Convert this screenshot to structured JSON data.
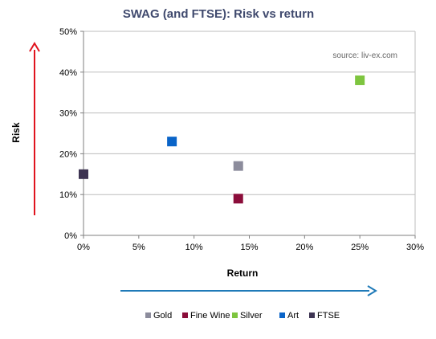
{
  "chart_data": {
    "type": "scatter",
    "title": "SWAG (and FTSE): Risk vs return",
    "xlabel": "Return",
    "ylabel": "Risk",
    "xlim": [
      0,
      30
    ],
    "ylim": [
      0,
      50
    ],
    "x_ticks": [
      0,
      5,
      10,
      15,
      20,
      25,
      30
    ],
    "y_ticks": [
      0,
      10,
      20,
      30,
      40,
      50
    ],
    "x_tick_labels": [
      "0%",
      "5%",
      "10%",
      "15%",
      "20%",
      "25%",
      "30%"
    ],
    "y_tick_labels": [
      "0%",
      "10%",
      "20%",
      "30%",
      "40%",
      "50%"
    ],
    "grid": "horizontal",
    "legend_position": "bottom",
    "annotation": "source: liv-ex.com",
    "series": [
      {
        "name": "Gold",
        "color": "#8c8c9c",
        "marker": "square",
        "points": [
          {
            "x": 14,
            "y": 17
          }
        ]
      },
      {
        "name": "Fine Wine",
        "color": "#8b0d3a",
        "marker": "square",
        "points": [
          {
            "x": 14,
            "y": 9
          }
        ]
      },
      {
        "name": "Silver",
        "color": "#7ec53f",
        "marker": "square",
        "points": [
          {
            "x": 25,
            "y": 38
          }
        ]
      },
      {
        "name": "Art",
        "color": "#0a64c8",
        "marker": "square",
        "points": [
          {
            "x": 8,
            "y": 23
          }
        ]
      },
      {
        "name": "FTSE",
        "color": "#3d3452",
        "marker": "square",
        "points": [
          {
            "x": 0,
            "y": 15
          }
        ]
      }
    ],
    "arrows": {
      "risk_color": "#e0141e",
      "return_color": "#1f7ab8"
    }
  }
}
